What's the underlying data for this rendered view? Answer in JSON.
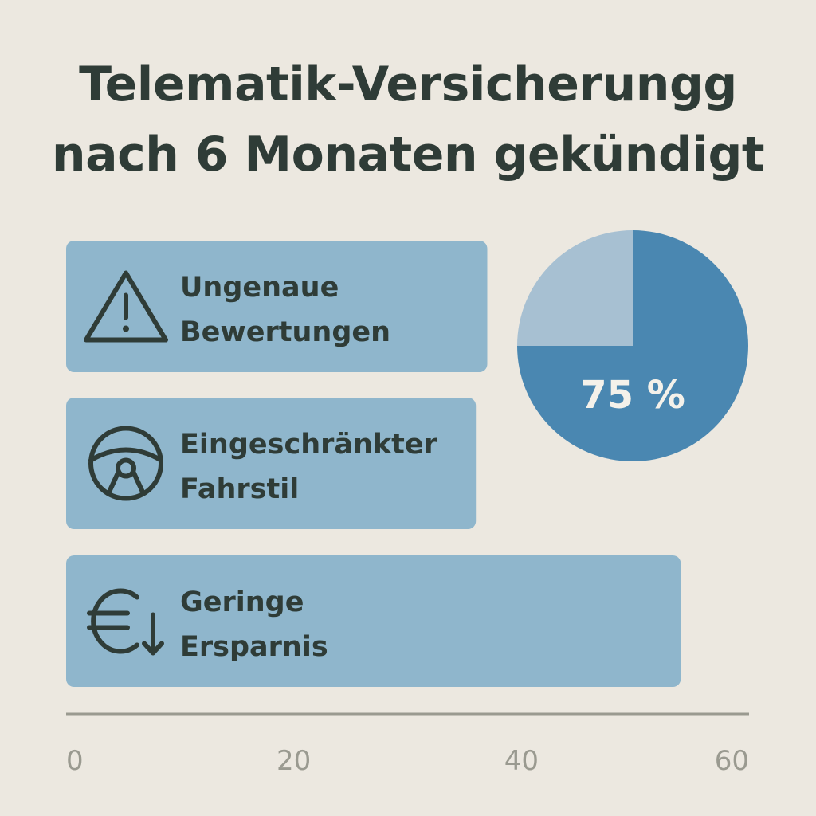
{
  "title_lines": [
    "Telematik-Versicherungg",
    "nach 6 Monaten gekündigt"
  ],
  "colors": {
    "background": "#ece8e0",
    "bar": "#8fb6cc",
    "pie_main": "#4a87b1",
    "pie_rest": "#a7c0d2",
    "icon": "#2f3c37",
    "axis": "#9a9a90"
  },
  "chart_data": [
    {
      "type": "bar",
      "orientation": "horizontal",
      "categories": [
        {
          "line1": "Ungenaue",
          "line2": "Bewertungen",
          "icon": "warning-triangle-icon"
        },
        {
          "line1": "Eingeschränkter",
          "line2": "Fahrstil",
          "icon": "steering-wheel-icon"
        },
        {
          "line1": "Geringe",
          "line2": "Ersparnis",
          "icon": "euro-down-icon"
        }
      ],
      "values": [
        37,
        36,
        54
      ],
      "xticks": [
        "0",
        "20",
        "40",
        "60"
      ],
      "xlim": [
        0,
        60
      ],
      "grid": false
    },
    {
      "type": "pie",
      "slices": [
        {
          "value": 75,
          "label": "75 %"
        },
        {
          "value": 25,
          "label": ""
        }
      ]
    }
  ]
}
